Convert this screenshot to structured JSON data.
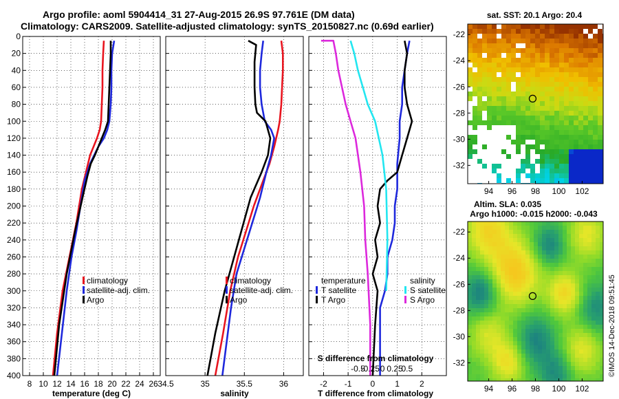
{
  "title_line1": "Argo profile: aoml 5904414_31 27-Aug-2015 26.9S 97.761E (DM data)",
  "title_line2": "Climatology: CARS2009. Satellite-adjusted climatology: synTS_20150827.nc (0.69d earlier)",
  "timestamp": "©IMOS 14-Dec-2018 09:51:45",
  "colors": {
    "climatology": "#e8141e",
    "satellite": "#1e28dc",
    "argo": "#000000",
    "sal_satellite": "#22e6f0",
    "sal_argo": "#dc28dc"
  },
  "chart_data": [
    {
      "type": "line",
      "name": "temperature-profile",
      "xlabel": "temperature (deg C)",
      "xlim": [
        7,
        27
      ],
      "ylim": [
        0,
        400
      ],
      "y_inverted": true,
      "xticks": [
        8,
        10,
        12,
        14,
        16,
        18,
        20,
        22,
        24,
        26
      ],
      "yticks": [
        0,
        20,
        40,
        60,
        80,
        100,
        120,
        140,
        160,
        180,
        200,
        220,
        240,
        260,
        280,
        300,
        320,
        340,
        360,
        380,
        400
      ],
      "grid": true,
      "legend_position": "lower-center",
      "series": [
        {
          "name": "climatology",
          "color": "#e8141e",
          "x": [
            18.8,
            18.7,
            18.6,
            18.6,
            18.5,
            18.4,
            18.2,
            17.8,
            17.3,
            16.8,
            16.2,
            15.6,
            14.8,
            13.8,
            12.8,
            12.0,
            11.4
          ],
          "y": [
            5,
            20,
            40,
            60,
            80,
            100,
            110,
            120,
            130,
            140,
            160,
            180,
            220,
            260,
            300,
            350,
            400
          ]
        },
        {
          "name": "satellite-adj. clim.",
          "color": "#1e28dc",
          "x": [
            20.3,
            20.0,
            19.9,
            19.9,
            19.8,
            19.6,
            19.3,
            18.8,
            18.0,
            17.4,
            16.8,
            16.0,
            15.4,
            14.8,
            14.1,
            13.4,
            12.7,
            12.0
          ],
          "y": [
            5,
            20,
            40,
            60,
            80,
            100,
            110,
            120,
            130,
            140,
            150,
            170,
            200,
            230,
            260,
            300,
            350,
            400
          ]
        },
        {
          "name": "Argo",
          "color": "#000000",
          "x": [
            19.8,
            19.8,
            19.7,
            19.6,
            19.5,
            19.4,
            19.0,
            18.5,
            18.0,
            17.5,
            16.9,
            16.4,
            15.7,
            14.6,
            13.4,
            12.3,
            11.6
          ],
          "y": [
            5,
            20,
            40,
            60,
            80,
            100,
            110,
            120,
            130,
            140,
            150,
            165,
            190,
            230,
            280,
            340,
            400
          ]
        }
      ]
    },
    {
      "type": "line",
      "name": "salinity-profile",
      "xlabel": "salinity",
      "xlim": [
        34.5,
        36.25
      ],
      "ylim": [
        0,
        400
      ],
      "y_inverted": true,
      "xticks": [
        34.5,
        35,
        35.5,
        36
      ],
      "grid": true,
      "legend_position": "lower-center",
      "series": [
        {
          "name": "climatology",
          "color": "#e8141e",
          "x": [
            35.97,
            35.99,
            35.99,
            35.98,
            35.97,
            35.95,
            35.93,
            35.88,
            35.82,
            35.74,
            35.62,
            35.52,
            35.42,
            35.32,
            35.23,
            35.13
          ],
          "y": [
            5,
            20,
            40,
            60,
            80,
            100,
            110,
            130,
            150,
            170,
            200,
            230,
            260,
            300,
            350,
            400
          ]
        },
        {
          "name": "satellite-adj. clim.",
          "color": "#1e28dc",
          "x": [
            35.74,
            35.72,
            35.7,
            35.7,
            35.72,
            35.76,
            35.84,
            35.88,
            35.84,
            35.78,
            35.7,
            35.6,
            35.5,
            35.4,
            35.33,
            35.22
          ],
          "y": [
            5,
            20,
            40,
            60,
            80,
            100,
            110,
            120,
            140,
            160,
            190,
            220,
            250,
            280,
            320,
            400
          ]
        },
        {
          "name": "Argo",
          "color": "#000000",
          "x": [
            35.55,
            35.65,
            35.63,
            35.63,
            35.64,
            35.66,
            35.77,
            35.83,
            35.8,
            35.72,
            35.58,
            35.46,
            35.34,
            35.25,
            35.13,
            35.03
          ],
          "y": [
            5,
            10,
            30,
            60,
            80,
            90,
            100,
            120,
            140,
            160,
            190,
            230,
            270,
            300,
            350,
            400
          ]
        }
      ]
    },
    {
      "type": "line",
      "name": "difference-profile",
      "xlabel": "T difference from climatology",
      "x2label": "S difference from climatology",
      "xlim": [
        -2.6,
        3.0
      ],
      "ylim": [
        0,
        400
      ],
      "y_inverted": true,
      "xticks": [
        -2,
        -1,
        0,
        1,
        2
      ],
      "x2ticks": [
        -0.5,
        -0.25,
        0,
        0.25,
        0.5
      ],
      "grid": true,
      "legend_position": "lower-center",
      "legend_groups": {
        "temperature": "temperature",
        "salinity": "salinity"
      },
      "series": [
        {
          "name": "T satellite",
          "color": "#1e28dc",
          "x": [
            1.5,
            1.4,
            1.3,
            1.2,
            1.2,
            1.1,
            1.1,
            1.0,
            1.0,
            0.9,
            0.9,
            0.8,
            0.6,
            0.6,
            0.5,
            0.3,
            0.3,
            0.3
          ],
          "y": [
            5,
            20,
            40,
            60,
            80,
            100,
            120,
            150,
            180,
            200,
            220,
            240,
            260,
            280,
            300,
            320,
            360,
            400
          ]
        },
        {
          "name": "T Argo",
          "color": "#000000",
          "x": [
            1.3,
            1.4,
            1.3,
            1.3,
            1.4,
            1.6,
            1.4,
            1.2,
            1.0,
            0.6,
            0.3,
            0.2,
            0.3,
            0.1,
            0.2,
            0.0,
            0.2,
            0.1,
            0.0
          ],
          "y": [
            5,
            20,
            40,
            60,
            80,
            100,
            120,
            140,
            160,
            170,
            180,
            200,
            220,
            240,
            260,
            280,
            300,
            340,
            400
          ]
        },
        {
          "name": "S satellite",
          "color": "#22e6f0",
          "x": [
            -0.9,
            -0.75,
            -0.6,
            -0.4,
            -0.2,
            0.1,
            0.4,
            0.55,
            0.6,
            0.55
          ],
          "y": [
            5,
            20,
            40,
            60,
            80,
            100,
            140,
            180,
            240,
            300
          ]
        },
        {
          "name": "S Argo",
          "color": "#dc28dc",
          "x": [
            -2.1,
            -1.6,
            -1.5,
            -1.4,
            -1.1,
            -0.9,
            -0.7,
            -0.5,
            -0.35,
            -0.3,
            -0.2,
            -0.1,
            -0.1
          ],
          "y": [
            5,
            5,
            20,
            40,
            80,
            100,
            120,
            160,
            200,
            240,
            280,
            340,
            400
          ]
        }
      ]
    },
    {
      "type": "heatmap",
      "name": "sst-map",
      "title": "sat. SST: 20.1 Argo: 20.4",
      "xticks": [
        94,
        96,
        98,
        100,
        102
      ],
      "yticks": [
        -22,
        -24,
        -26,
        -28,
        -30,
        -32
      ],
      "xlim": [
        92.2,
        103.8
      ],
      "ylim": [
        -33.4,
        -21.2
      ],
      "argo_position": [
        97.761,
        -26.9
      ]
    },
    {
      "type": "heatmap",
      "name": "sla-map",
      "title": "Altim. SLA: 0.035",
      "subtitle": "Argo h1000: -0.015 h2000: -0.043",
      "xticks": [
        94,
        96,
        98,
        100,
        102
      ],
      "yticks": [
        -22,
        -24,
        -26,
        -28,
        -30,
        -32
      ],
      "xlim": [
        92.2,
        103.8
      ],
      "ylim": [
        -33.4,
        -21.2
      ],
      "argo_position": [
        97.761,
        -26.9
      ]
    }
  ]
}
